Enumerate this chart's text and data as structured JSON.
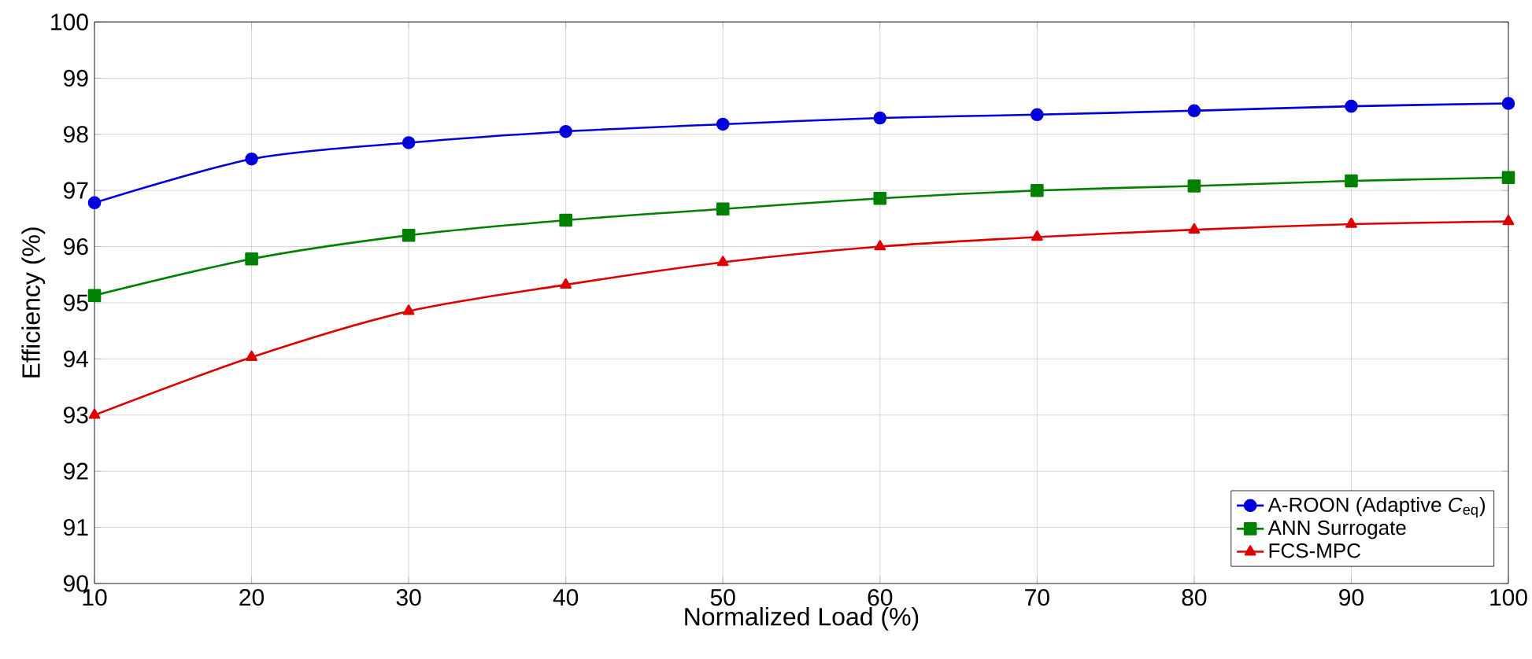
{
  "chart_data": {
    "type": "line",
    "xlabel": "Normalized Load (%)",
    "ylabel": "Efficiency (%)",
    "x": [
      10,
      20,
      30,
      40,
      50,
      60,
      70,
      80,
      90,
      100
    ],
    "series": [
      {
        "name": "A-ROON (Adaptive *C*$_{eq}$)",
        "color": "#0000dd",
        "marker": "circle",
        "values": [
          96.78,
          97.56,
          97.85,
          98.05,
          98.18,
          98.29,
          98.35,
          98.42,
          98.5,
          98.55
        ]
      },
      {
        "name": "ANN Surrogate",
        "color": "#008000",
        "marker": "square",
        "values": [
          95.13,
          95.78,
          96.2,
          96.47,
          96.67,
          96.86,
          97.0,
          97.08,
          97.17,
          97.23
        ]
      },
      {
        "name": "FCS-MPC",
        "color": "#dd0000",
        "marker": "triangle",
        "values": [
          93.0,
          94.03,
          94.85,
          95.32,
          95.72,
          96.0,
          96.17,
          96.3,
          96.4,
          96.45
        ]
      }
    ],
    "xlim": [
      10,
      100
    ],
    "xticks": [
      10,
      20,
      30,
      40,
      50,
      60,
      70,
      80,
      90,
      100
    ],
    "ylim": [
      90,
      100
    ],
    "yticks": [
      90,
      91,
      92,
      93,
      94,
      95,
      96,
      97,
      98,
      99,
      100
    ],
    "grid": true,
    "legend": "bottom right",
    "line_style": "solid"
  }
}
